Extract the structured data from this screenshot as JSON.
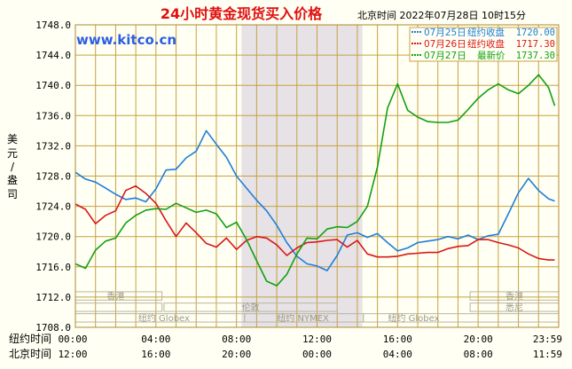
{
  "header": {
    "title": "24小时黄金现货买入价格",
    "timestamp": "北京时间  2022年07月28日 10时15分",
    "watermark": "www.kitco.cn"
  },
  "legend": [
    {
      "date": "07月25日",
      "label": "纽约收盘",
      "value": "1720.00",
      "color": "#1e7fd8"
    },
    {
      "date": "07月26日",
      "label": "纽约收盘",
      "value": "1717.30",
      "color": "#d81818"
    },
    {
      "date": "07月27日",
      "label": "最新价",
      "value": "1737.30",
      "color": "#12a012"
    }
  ],
  "y_axis_label": [
    "美",
    "元",
    "/",
    "盎",
    "司"
  ],
  "time_rows": [
    {
      "label": "纽约时间",
      "ticks": [
        "00:00",
        "04:00",
        "08:00",
        "12:00",
        "16:00",
        "20:00",
        "23:59"
      ]
    },
    {
      "label": "北京时间",
      "ticks": [
        "12:00",
        "16:00",
        "20:00",
        "00:00",
        "04:00",
        "08:00",
        "11:59"
      ]
    }
  ],
  "markets": [
    "香港",
    "香港",
    "伦敦",
    "悉尼",
    "纽约 Globex",
    "纽约 NYMEX",
    "纽约 Globex",
    "纽约 Globex"
  ],
  "colors": {
    "bg": "#fffff3",
    "grid": "#c8a040",
    "title": "#e01010",
    "shade": "#e6e2e6"
  },
  "chart_data": {
    "type": "line",
    "title": "24小时黄金现货买入价格",
    "ylabel": "美元/盎司",
    "ylim": [
      1708,
      1748
    ],
    "xlim": [
      0,
      24
    ],
    "yticks": [
      "1708.0",
      "1712.0",
      "1716.0",
      "1720.0",
      "1724.0",
      "1728.0",
      "1732.0",
      "1736.0",
      "1740.0",
      "1744.0",
      "1748.0"
    ],
    "shaded_x": [
      8.25,
      14.25
    ],
    "series": [
      {
        "name": "07月25日",
        "color": "#1e7fd8",
        "x": [
          0,
          0.5,
          1,
          1.5,
          2,
          2.5,
          3,
          3.5,
          4,
          4.5,
          5,
          5.5,
          6,
          6.5,
          7,
          7.5,
          8,
          8.5,
          9,
          9.5,
          10,
          10.5,
          11,
          11.5,
          12,
          12.5,
          13,
          13.5,
          14,
          14.5,
          15,
          15.5,
          16,
          16.5,
          17,
          17.5,
          18,
          18.5,
          19,
          19.5,
          20,
          20.5,
          21,
          21.5,
          22,
          22.5,
          23,
          23.5,
          23.8
        ],
        "y": [
          1728.5,
          1727.6,
          1727.2,
          1726.4,
          1725.6,
          1724.9,
          1725.1,
          1724.6,
          1726.3,
          1728.8,
          1728.9,
          1730.4,
          1731.3,
          1734.0,
          1732.2,
          1730.5,
          1728.0,
          1726.4,
          1724.8,
          1723.4,
          1721.5,
          1719.2,
          1717.4,
          1716.4,
          1716.1,
          1715.5,
          1717.5,
          1720.2,
          1720.5,
          1719.9,
          1720.4,
          1719.2,
          1718.1,
          1718.5,
          1719.2,
          1719.4,
          1719.6,
          1720.0,
          1719.7,
          1720.2,
          1719.6,
          1720.1,
          1720.3,
          1723.0,
          1725.8,
          1727.7,
          1726.1,
          1725.0,
          1724.7
        ]
      },
      {
        "name": "07月26日",
        "color": "#d81818",
        "x": [
          0,
          0.5,
          1,
          1.5,
          2,
          2.5,
          3,
          3.5,
          4,
          4.5,
          5,
          5.5,
          6,
          6.5,
          7,
          7.5,
          8,
          8.5,
          9,
          9.5,
          10,
          10.5,
          11,
          11.5,
          12,
          12.5,
          13,
          13.5,
          14,
          14.5,
          15,
          15.5,
          16,
          16.5,
          17,
          17.5,
          18,
          18.5,
          19,
          19.5,
          20,
          20.5,
          21,
          21.5,
          22,
          22.5,
          23,
          23.5,
          23.8
        ],
        "y": [
          1724.3,
          1723.6,
          1721.7,
          1722.8,
          1723.4,
          1726.1,
          1726.7,
          1725.7,
          1724.4,
          1722.1,
          1720.0,
          1721.8,
          1720.5,
          1719.1,
          1718.6,
          1719.8,
          1718.3,
          1719.5,
          1720.0,
          1719.8,
          1718.9,
          1717.5,
          1718.5,
          1719.2,
          1719.3,
          1719.5,
          1719.6,
          1718.6,
          1719.5,
          1717.7,
          1717.3,
          1717.3,
          1717.4,
          1717.7,
          1717.8,
          1717.9,
          1717.9,
          1718.4,
          1718.7,
          1718.8,
          1719.6,
          1719.6,
          1719.2,
          1718.9,
          1718.5,
          1717.7,
          1717.1,
          1716.9,
          1716.9
        ]
      },
      {
        "name": "07月27日",
        "color": "#12a012",
        "x": [
          0,
          0.5,
          1,
          1.5,
          2,
          2.5,
          3,
          3.5,
          4,
          4.5,
          5,
          5.5,
          6,
          6.5,
          7,
          7.5,
          8,
          8.5,
          9,
          9.5,
          10,
          10.5,
          11,
          11.5,
          12,
          12.5,
          13,
          13.5,
          14,
          14.5,
          15,
          15.5,
          16,
          16.5,
          17,
          17.5,
          18,
          18.5,
          19,
          19.5,
          20,
          20.5,
          21,
          21.5,
          22,
          22.5,
          23,
          23.5,
          23.8
        ],
        "y": [
          1716.4,
          1715.8,
          1718.2,
          1719.4,
          1719.8,
          1721.8,
          1722.8,
          1723.5,
          1723.7,
          1723.6,
          1724.4,
          1723.8,
          1723.2,
          1723.5,
          1723.0,
          1721.2,
          1721.9,
          1719.6,
          1716.8,
          1714.1,
          1713.5,
          1715.0,
          1717.7,
          1719.8,
          1719.7,
          1721.0,
          1721.3,
          1721.2,
          1722.0,
          1724.0,
          1729.2,
          1737.0,
          1740.2,
          1736.7,
          1735.8,
          1735.2,
          1735.1,
          1735.1,
          1735.4,
          1736.8,
          1738.3,
          1739.4,
          1740.2,
          1739.4,
          1738.9,
          1740.0,
          1741.4,
          1739.7,
          1737.3
        ]
      }
    ]
  }
}
